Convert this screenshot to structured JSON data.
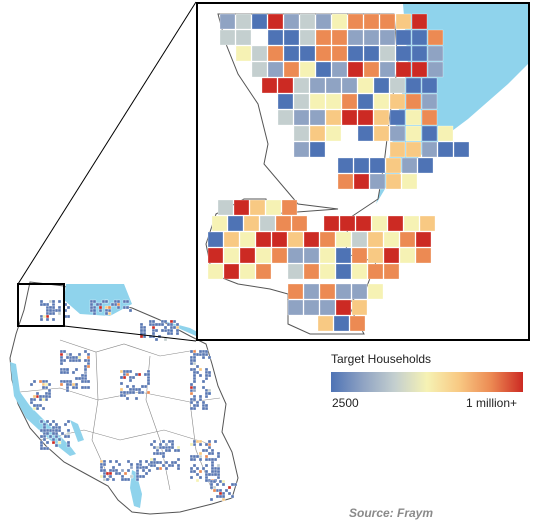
{
  "legend": {
    "title": "Target Households",
    "min_label": "2500",
    "max_label": "1 million+",
    "color_scale": [
      "#4e73b5",
      "#8fa3c3",
      "#c4cfcf",
      "#f6f2b4",
      "#f8c983",
      "#ec8a53",
      "#cc2a23"
    ]
  },
  "source": "Source: Fraym",
  "colors": {
    "water": "#8fd3ec",
    "border": "#555555",
    "frame": "#000000"
  }
}
